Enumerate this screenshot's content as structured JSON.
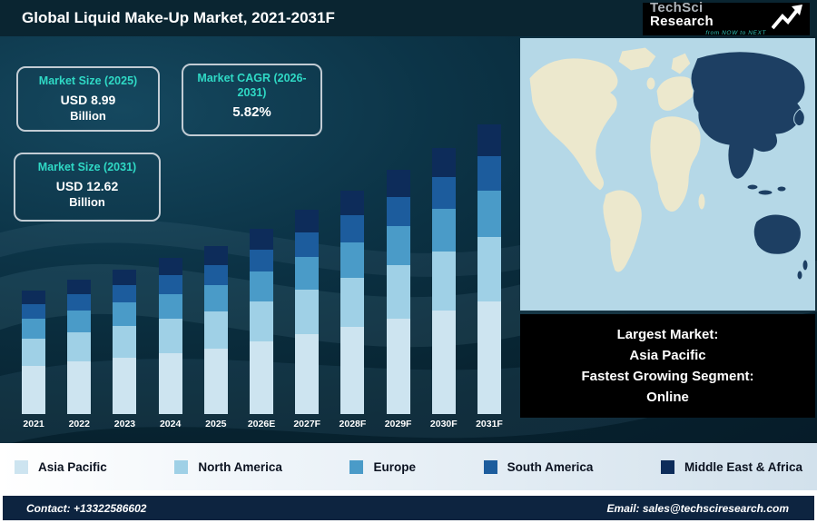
{
  "header": {
    "title": "Global Liquid Make-Up Market, 2021-2031F"
  },
  "logo": {
    "brand_primary": "TechSci",
    "brand_secondary": "Research",
    "tagline": "from NOW to NEXT"
  },
  "stats": [
    {
      "label": "Market Size (2025)",
      "value": "USD 8.99",
      "unit": "Billion"
    },
    {
      "label": "Market CAGR (2026-2031)",
      "value": "5.82%"
    },
    {
      "label": "Market Size (2031)",
      "value": "USD 12.62",
      "unit": "Billion"
    }
  ],
  "chart_data": {
    "type": "bar",
    "stacked": true,
    "title": "Global Liquid Make-Up Market, 2021-2031F",
    "values_unit": "USD Billion",
    "categories": [
      "2021",
      "2022",
      "2023",
      "2024",
      "2025",
      "2026E",
      "2027F",
      "2028F",
      "2029F",
      "2030F",
      "2031F"
    ],
    "series": [
      {
        "name": "Asia Pacific",
        "color": "#cde4f0",
        "values": [
          3.0,
          3.12,
          3.24,
          3.37,
          3.51,
          3.71,
          3.93,
          4.15,
          4.4,
          4.65,
          4.92
        ]
      },
      {
        "name": "North America",
        "color": "#9fd0e6",
        "values": [
          1.69,
          1.76,
          1.83,
          1.9,
          1.98,
          2.09,
          2.22,
          2.34,
          2.48,
          2.62,
          2.78
        ]
      },
      {
        "name": "Europe",
        "color": "#4a9bc8",
        "values": [
          1.23,
          1.28,
          1.33,
          1.38,
          1.44,
          1.52,
          1.61,
          1.7,
          1.8,
          1.91,
          2.02
        ]
      },
      {
        "name": "South America",
        "color": "#1c5c9d",
        "values": [
          0.92,
          0.96,
          1.0,
          1.04,
          1.08,
          1.14,
          1.21,
          1.28,
          1.35,
          1.43,
          1.51
        ]
      },
      {
        "name": "Middle East & Africa",
        "color": "#0d2c5a",
        "values": [
          0.84,
          0.88,
          0.91,
          0.95,
          0.98,
          1.05,
          1.11,
          1.17,
          1.24,
          1.31,
          1.39
        ]
      }
    ],
    "totals_estimated": [
      7.68,
      8.0,
      8.31,
      8.64,
      8.99,
      9.51,
      10.08,
      10.64,
      11.27,
      11.92,
      12.62
    ],
    "legend_position": "bottom",
    "grid": false
  },
  "map": {
    "highlight_region": "Asia Pacific",
    "ocean_color": "#b5d8e7",
    "land_color": "#ece8cd",
    "highlight_color": "#1d3f63"
  },
  "info_box": {
    "lines": [
      "Largest Market:",
      "Asia Pacific",
      "Fastest Growing Segment:",
      "Online"
    ]
  },
  "legend": {
    "items": [
      {
        "label": "Asia Pacific",
        "color": "#cde4f0"
      },
      {
        "label": "North America",
        "color": "#9fd0e6"
      },
      {
        "label": "Europe",
        "color": "#4a9bc8"
      },
      {
        "label": "South America",
        "color": "#1c5c9d"
      },
      {
        "label": "Middle East & Africa",
        "color": "#0d2c5a"
      }
    ]
  },
  "footer": {
    "contact": "Contact: +13322586602",
    "email": "Email: sales@techsciresearch.com"
  }
}
